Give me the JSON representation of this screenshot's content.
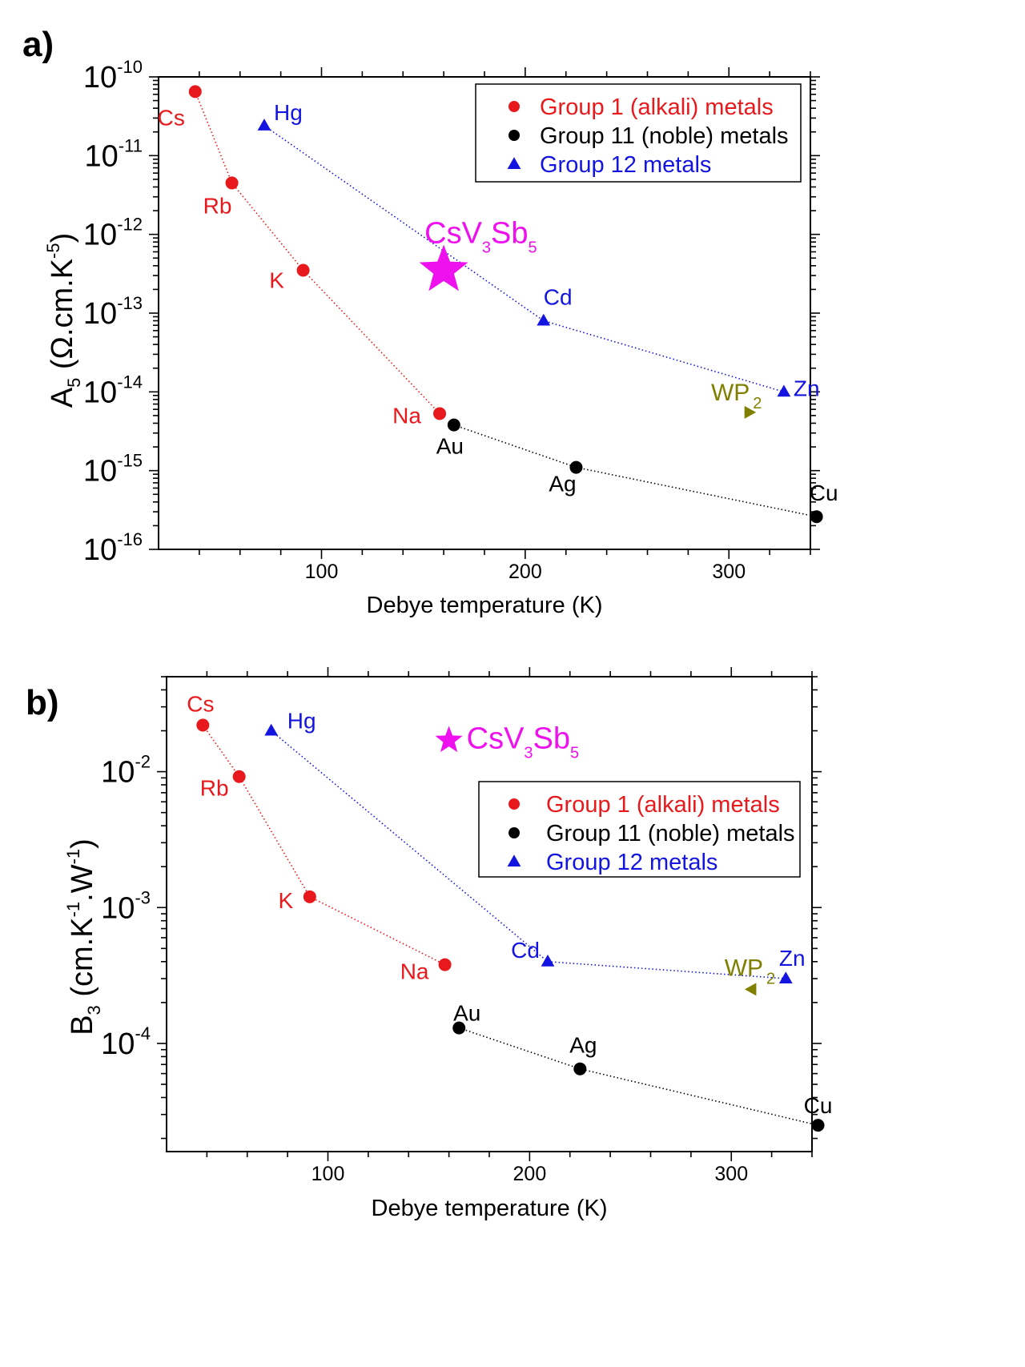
{
  "chart_data": [
    {
      "panel": "a)",
      "type": "scatter",
      "scale_y": "log",
      "xlabel": "Debye temperature (K)",
      "ylabel": {
        "main": "A",
        "sub": "5",
        "units_prefix": "(Ω.cm.K",
        "units_exp": "-5",
        "units_suffix": ")"
      },
      "xlim": [
        20,
        340
      ],
      "ylim": [
        1e-16,
        1e-10
      ],
      "x_ticks": [
        100,
        200,
        300
      ],
      "y_tick_exponents": [
        -10,
        -11,
        -12,
        -13,
        -14,
        -15,
        -16
      ],
      "legend": [
        {
          "label": "Group 1 (alkali) metals",
          "color": "#e8191c",
          "marker": "circle"
        },
        {
          "label": "Group 11 (noble) metals",
          "color": "#000000",
          "marker": "circle"
        },
        {
          "label": "Group 12 metals",
          "color": "#1414e0",
          "marker": "triangle-up"
        }
      ],
      "series": [
        {
          "name": "Group 1 (alkali) metals",
          "color": "#e8191c",
          "marker": "circle",
          "connect": true,
          "points": [
            {
              "label": "Cs",
              "x": 38,
              "y": 6.5e-11
            },
            {
              "label": "Rb",
              "x": 56,
              "y": 4.5e-12
            },
            {
              "label": "K",
              "x": 91,
              "y": 3.5e-13
            },
            {
              "label": "Na",
              "x": 158,
              "y": 5.3e-15
            }
          ]
        },
        {
          "name": "Group 11 (noble) metals",
          "color": "#000000",
          "marker": "circle",
          "connect": true,
          "points": [
            {
              "label": "Au",
              "x": 165,
              "y": 3.8e-15
            },
            {
              "label": "Ag",
              "x": 225,
              "y": 1.1e-15
            },
            {
              "label": "Cu",
              "x": 343,
              "y": 2.6e-16
            }
          ]
        },
        {
          "name": "Group 12 metals",
          "color": "#1414e0",
          "marker": "triangle-up",
          "connect": true,
          "points": [
            {
              "label": "Hg",
              "x": 71.9,
              "y": 2.4e-11
            },
            {
              "label": "Cd",
              "x": 209,
              "y": 8e-14
            },
            {
              "label": "Zn",
              "x": 327,
              "y": 1e-14
            }
          ]
        }
      ],
      "special_points": [
        {
          "label_main": "CsV",
          "label_sub1": "3",
          "label_mid": "Sb",
          "label_sub2": "5",
          "x": 160,
          "y": 3.5e-13,
          "color": "#ee11ee",
          "marker": "star"
        },
        {
          "label_main": "WP",
          "label_sub": "2",
          "x": 310,
          "y": 5.5e-15,
          "color": "#7f7f00",
          "marker": "triangle-right"
        }
      ]
    },
    {
      "panel": "b)",
      "type": "scatter",
      "scale_y": "log",
      "xlabel": "Debye temperature (K)",
      "ylabel": {
        "main": "B",
        "sub": "3",
        "units_prefix": "(cm.K",
        "units_exp1": "-1",
        "units_mid": ".W",
        "units_exp2": "-1",
        "units_suffix": ")"
      },
      "xlim": [
        20,
        340
      ],
      "ylim": [
        1.6e-05,
        0.05
      ],
      "x_ticks": [
        100,
        200,
        300
      ],
      "y_tick_exponents": [
        -2,
        -3,
        -4
      ],
      "legend": [
        {
          "label": "Group 1 (alkali) metals",
          "color": "#e8191c",
          "marker": "circle"
        },
        {
          "label": "Group 11 (noble) metals",
          "color": "#000000",
          "marker": "circle"
        },
        {
          "label": "Group 12 metals",
          "color": "#1414e0",
          "marker": "triangle-up"
        }
      ],
      "series": [
        {
          "name": "Group 1 (alkali) metals",
          "color": "#e8191c",
          "marker": "circle",
          "connect": true,
          "points": [
            {
              "label": "Cs",
              "x": 38,
              "y": 0.022
            },
            {
              "label": "Rb",
              "x": 56,
              "y": 0.0092
            },
            {
              "label": "K",
              "x": 91,
              "y": 0.0012
            },
            {
              "label": "Na",
              "x": 158,
              "y": 0.00038
            }
          ]
        },
        {
          "name": "Group 11 (noble) metals",
          "color": "#000000",
          "marker": "circle",
          "connect": true,
          "points": [
            {
              "label": "Au",
              "x": 165,
              "y": 0.00013
            },
            {
              "label": "Ag",
              "x": 225,
              "y": 6.5e-05
            },
            {
              "label": "Cu",
              "x": 343,
              "y": 2.5e-05
            }
          ]
        },
        {
          "name": "Group 12 metals",
          "color": "#1414e0",
          "marker": "triangle-up",
          "connect": true,
          "points": [
            {
              "label": "Hg",
              "x": 71.9,
              "y": 0.02
            },
            {
              "label": "Cd",
              "x": 209,
              "y": 0.0004
            },
            {
              "label": "Zn",
              "x": 327,
              "y": 0.0003
            }
          ]
        }
      ],
      "special_points": [
        {
          "label_main": "CsV",
          "label_sub1": "3",
          "label_mid": "Sb",
          "label_sub2": "5",
          "x": 160,
          "y": 0.017,
          "color": "#ee11ee",
          "marker": "star"
        },
        {
          "label_main": "WP",
          "label_sub": "2",
          "x": 310,
          "y": 0.00025,
          "color": "#7f7f00",
          "marker": "triangle-left"
        }
      ]
    }
  ]
}
